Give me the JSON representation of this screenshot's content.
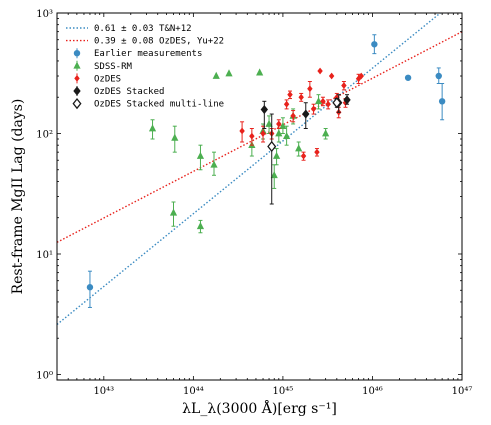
{
  "chart_data": {
    "type": "scatter",
    "xscale": "log",
    "yscale": "log",
    "xlim": [
      3e+42,
      1e+47
    ],
    "ylim": [
      0.9,
      1000
    ],
    "xlabel": "λL_λ(3000 Å)[erg s⁻¹]",
    "ylabel": "Rest-frame MgII Lag (days)",
    "x_tick_values": [
      1e+43,
      1e+44,
      1e+45,
      1e+46,
      1e+47
    ],
    "x_tick_labels": [
      "10⁴³",
      "10⁴⁴",
      "10⁴⁵",
      "10⁴⁶",
      "10⁴⁷"
    ],
    "y_tick_values": [
      1,
      10,
      100,
      1000
    ],
    "y_tick_labels": [
      "10⁰",
      "10¹",
      "10²",
      "10³"
    ],
    "grid": false,
    "legend_position": "top-left",
    "colors": {
      "blue": "#3b8bc2",
      "green": "#4caf50",
      "red": "#e8221c",
      "black": "#1a1a1a"
    },
    "fits": [
      {
        "name": "0.61 ± 0.03 T&N+12",
        "color": "#3b8bc2",
        "slope": 0.61,
        "x": [
          3e+42,
          1e+47
        ],
        "y": [
          2.6,
          1400
        ]
      },
      {
        "name": "0.39 ± 0.08 OzDES, Yu+22",
        "color": "#e8221c",
        "slope": 0.39,
        "x": [
          3e+42,
          1e+47
        ],
        "y": [
          12.5,
          700
        ]
      }
    ],
    "series": [
      {
        "name": "Earlier measurements",
        "marker": "circle",
        "color": "#3b8bc2",
        "points": [
          {
            "x": 7e+42,
            "y": 5.3,
            "ylo": 3.6,
            "yhi": 7.2
          },
          {
            "x": 1.05e+46,
            "y": 550,
            "ylo": 460,
            "yhi": 660
          },
          {
            "x": 2.5e+46,
            "y": 290,
            "ylo": 280,
            "yhi": 300
          },
          {
            "x": 5.5e+46,
            "y": 300,
            "ylo": 260,
            "yhi": 350
          },
          {
            "x": 6e+46,
            "y": 185,
            "ylo": 130,
            "yhi": 260
          }
        ]
      },
      {
        "name": "SDSS-RM",
        "marker": "triangle",
        "color": "#4caf50",
        "points": [
          {
            "x": 3.5e+43,
            "y": 110,
            "ylo": 90,
            "yhi": 130
          },
          {
            "x": 6e+43,
            "y": 22,
            "ylo": 17,
            "yhi": 27
          },
          {
            "x": 6.2e+43,
            "y": 92,
            "ylo": 70,
            "yhi": 115
          },
          {
            "x": 1.2e+44,
            "y": 17,
            "ylo": 15,
            "yhi": 19
          },
          {
            "x": 1.2e+44,
            "y": 65,
            "ylo": 50,
            "yhi": 80
          },
          {
            "x": 1.7e+44,
            "y": 55,
            "ylo": 45,
            "yhi": 70
          },
          {
            "x": 1.8e+44,
            "y": 300
          },
          {
            "x": 2.5e+44,
            "y": 315
          },
          {
            "x": 4.5e+44,
            "y": 80,
            "ylo": 65,
            "yhi": 95
          },
          {
            "x": 5.5e+44,
            "y": 320
          },
          {
            "x": 6e+44,
            "y": 105,
            "ylo": 90,
            "yhi": 120
          },
          {
            "x": 7e+44,
            "y": 120,
            "ylo": 100,
            "yhi": 140
          },
          {
            "x": 8e+44,
            "y": 45,
            "ylo": 35,
            "yhi": 55
          },
          {
            "x": 8.5e+44,
            "y": 65,
            "ylo": 55,
            "yhi": 75
          },
          {
            "x": 9e+44,
            "y": 100,
            "ylo": 85,
            "yhi": 120
          },
          {
            "x": 1e+45,
            "y": 115,
            "ylo": 100,
            "yhi": 135
          },
          {
            "x": 1.1e+45,
            "y": 95,
            "ylo": 80,
            "yhi": 115
          },
          {
            "x": 1.3e+45,
            "y": 140,
            "ylo": 120,
            "yhi": 160
          },
          {
            "x": 1.5e+45,
            "y": 75,
            "ylo": 65,
            "yhi": 85
          },
          {
            "x": 2.5e+45,
            "y": 185,
            "ylo": 160,
            "yhi": 210
          },
          {
            "x": 3e+45,
            "y": 100,
            "ylo": 90,
            "yhi": 110
          }
        ]
      },
      {
        "name": "OzDES",
        "marker": "diamond",
        "color": "#e8221c",
        "points": [
          {
            "x": 3.5e+44,
            "y": 105,
            "ylo": 85,
            "yhi": 125
          },
          {
            "x": 4.5e+44,
            "y": 95,
            "ylo": 80,
            "yhi": 110
          },
          {
            "x": 6e+44,
            "y": 100,
            "ylo": 85,
            "yhi": 115
          },
          {
            "x": 7.5e+44,
            "y": 100,
            "ylo": 90,
            "yhi": 110
          },
          {
            "x": 9e+44,
            "y": 120,
            "ylo": 110,
            "yhi": 130
          },
          {
            "x": 1.1e+45,
            "y": 175,
            "ylo": 160,
            "yhi": 190
          },
          {
            "x": 1.2e+45,
            "y": 210,
            "ylo": 195,
            "yhi": 225
          },
          {
            "x": 1.3e+45,
            "y": 140,
            "ylo": 125,
            "yhi": 155
          },
          {
            "x": 1.6e+45,
            "y": 200,
            "ylo": 185,
            "yhi": 215
          },
          {
            "x": 1.7e+45,
            "y": 65,
            "ylo": 60,
            "yhi": 70
          },
          {
            "x": 2e+45,
            "y": 235,
            "ylo": 200,
            "yhi": 270
          },
          {
            "x": 2.2e+45,
            "y": 160,
            "ylo": 145,
            "yhi": 175
          },
          {
            "x": 2.4e+45,
            "y": 70,
            "ylo": 65,
            "yhi": 75
          },
          {
            "x": 2.6e+45,
            "y": 330
          },
          {
            "x": 2.8e+45,
            "y": 185,
            "ylo": 170,
            "yhi": 200
          },
          {
            "x": 3.2e+45,
            "y": 175,
            "ylo": 160,
            "yhi": 190
          },
          {
            "x": 3.5e+45,
            "y": 300
          },
          {
            "x": 4e+45,
            "y": 200,
            "ylo": 185,
            "yhi": 215
          },
          {
            "x": 4.2e+45,
            "y": 150,
            "ylo": 135,
            "yhi": 165
          },
          {
            "x": 4.8e+45,
            "y": 250,
            "ylo": 230,
            "yhi": 270
          },
          {
            "x": 5e+45,
            "y": 180,
            "ylo": 165,
            "yhi": 195
          },
          {
            "x": 7e+45,
            "y": 285,
            "ylo": 260,
            "yhi": 310
          },
          {
            "x": 7.5e+45,
            "y": 300
          }
        ]
      },
      {
        "name": "OzDES Stacked",
        "marker": "diamond",
        "color": "#1a1a1a",
        "points": [
          {
            "x": 6.2e+44,
            "y": 158,
            "ylo": 110,
            "yhi": 185
          },
          {
            "x": 1.8e+45,
            "y": 145,
            "ylo": 110,
            "yhi": 180
          },
          {
            "x": 4.2e+45,
            "y": 180,
            "ylo": 150,
            "yhi": 210
          },
          {
            "x": 5.2e+45,
            "y": 190,
            "ylo": 175,
            "yhi": 210
          }
        ]
      },
      {
        "name": "OzDES Stacked multi-line",
        "marker": "diamond-open",
        "color": "#1a1a1a",
        "points": [
          {
            "x": 7.5e+44,
            "y": 78,
            "ylo": 26,
            "yhi": 145
          },
          {
            "x": 4e+45,
            "y": 180,
            "ylo": 165,
            "yhi": 195
          }
        ]
      }
    ]
  }
}
